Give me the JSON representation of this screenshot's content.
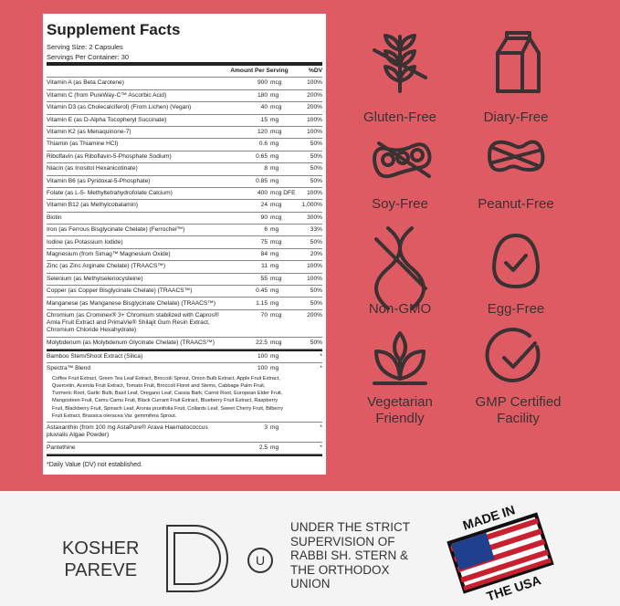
{
  "facts": {
    "title": "Supplement Facts",
    "serving_size": "Serving Size: 2 Capsules",
    "servings_per_container": "Servings Per Container: 30",
    "header": {
      "amount": "Amount Per Serving",
      "dv": "%DV"
    },
    "rows": [
      {
        "name": "Vitamin A (as Beta Carotene)",
        "amount": "900",
        "unit": "mcg",
        "dv": "100%"
      },
      {
        "name": "Vitamin C (from PureWay-C™ Ascorbic Acid)",
        "amount": "180",
        "unit": "mg",
        "dv": "200%"
      },
      {
        "name": "Vitamin D3 (as Cholecalciferol) (From Lichen) (Vegan)",
        "amount": "40",
        "unit": "mcg",
        "dv": "200%"
      },
      {
        "name": "Vitamin E (as D-Alpha Tocopheryl Succinate)",
        "amount": "15",
        "unit": "mg",
        "dv": "100%"
      },
      {
        "name": "Vitamin K2 (as Menaquinone-7)",
        "amount": "120",
        "unit": "mcg",
        "dv": "100%"
      },
      {
        "name": "Thiamin (as Thiamine HCl)",
        "amount": "0.6",
        "unit": "mg",
        "dv": "50%"
      },
      {
        "name": "Riboflavin (as Riboflavin-5-Phosphate Sodium)",
        "amount": "0.65",
        "unit": "mg",
        "dv": "50%"
      },
      {
        "name": "Niacin (as Inositol Hexanicotinate)",
        "amount": "8",
        "unit": "mg",
        "dv": "50%"
      },
      {
        "name": "Vitamin B6 (as Pyridoxal-5-Phosphate)",
        "amount": "0.85",
        "unit": "mg",
        "dv": "50%"
      },
      {
        "name": "Folate (as L-5- Methyltetrahydrofolate Calcium)",
        "amount": "400",
        "unit": "mcg DFE",
        "dv": "100%"
      },
      {
        "name": "Vitamin B12 (as Methylcobalamin)",
        "amount": "24",
        "unit": "mcg",
        "dv": "1,000%"
      },
      {
        "name": "Biotin",
        "amount": "90",
        "unit": "mcg",
        "dv": "300%"
      },
      {
        "name": "Iron (as Ferrous Bisglycinate Chelate) (Ferrochel™)",
        "amount": "6",
        "unit": "mg",
        "dv": "33%"
      },
      {
        "name": "Iodine (as Potassium Iodide)",
        "amount": "75",
        "unit": "mcg",
        "dv": "50%"
      },
      {
        "name": "Magnesium (from Simag™ Magnesium Oxide)",
        "amount": "84",
        "unit": "mg",
        "dv": "20%"
      },
      {
        "name": "Zinc (as Zinc Arginate Chelate) (TRAACS™)",
        "amount": "11",
        "unit": "mg",
        "dv": "100%"
      },
      {
        "name": "Selenium (as Methylselenocysteine)",
        "amount": "55",
        "unit": "mcg",
        "dv": "100%"
      },
      {
        "name": "Copper (as Copper Bisglycinate Chelate) (TRAACS™)",
        "amount": "0.45",
        "unit": "mg",
        "dv": "50%"
      },
      {
        "name": "Manganese (as Manganese Bisglycinate Chelate) (TRAACS™)",
        "amount": "1.15",
        "unit": "mg",
        "dv": "50%"
      },
      {
        "name": "Chromium (as Crominex® 3+ Chromium stabilized with Capros® Amla Fruit Extract and PrimaVie® Shilajit Gum Resin Extract, Chromium Chloride Hexahydrate)",
        "amount": "70",
        "unit": "mcg",
        "dv": "200%"
      },
      {
        "name": "Molybdenum (as Molybdenum Glycinate Chelate) (TRAACS™)",
        "amount": "22.5",
        "unit": "mcg",
        "dv": "50%"
      }
    ],
    "other_rows": [
      {
        "name": "Bamboo Stem/Shoot Extract (Silica)",
        "amount": "100",
        "unit": "mg",
        "dv": "*"
      },
      {
        "name": "Spectra™ Blend",
        "amount": "100",
        "unit": "mg",
        "dv": "*",
        "detail": "Coffee Fruit Extract, Green Tea Leaf Extract, Broccoli Sprout, Onion Bulb Extract, Apple Fruit Extract, Quercetin, Acerola Fruit Extract, Tomato Fruit, Broccoli Floret and Stems, Cabbage Palm Fruit, Turmeric Root, Garlic Bulb, Basil Leaf, Oregano Leaf, Cassia Bark, Carrot Root, European Elder Fruit, Mangosteen Fruit, Camu Camu Fruit, Black Currant Fruit Extract, Blueberry Fruit Extract, Raspberry Fruit, Blackberry Fruit, Spinach Leaf, Aronia prunifolia Fruit, Collards Leaf, Sweet Cherry Fruit, Bilberry Fruit Extract, Brassica oleracea Var. gemmifera Sprout."
      },
      {
        "name": "Astaxanthin (from 100 mg AstaPure® Arava Haematococcus pluvialis Algae Powder)",
        "amount": "3",
        "unit": "mg",
        "dv": "*"
      },
      {
        "name": "Pantethine",
        "amount": "2.5",
        "unit": "mg",
        "dv": "*"
      }
    ],
    "footnote": "*Daily Value (DV) not established."
  },
  "badges": [
    "Gluten-Free",
    "Diary-Free",
    "Soy-Free",
    "Peanut-Free",
    "Non-GMO",
    "Egg-Free",
    "Vegetarian Friendly",
    "GMP Certified Facility"
  ],
  "kosher": {
    "line1": "KOSHER",
    "line2": "PAREVE",
    "union": "U",
    "statement": [
      "UNDER THE STRICT",
      "SUPERVISION OF",
      "RABBI SH. STERN &",
      "THE ORTHODOX",
      "UNION"
    ]
  },
  "origin": {
    "top": "MADE IN",
    "bottom": "THE USA"
  }
}
